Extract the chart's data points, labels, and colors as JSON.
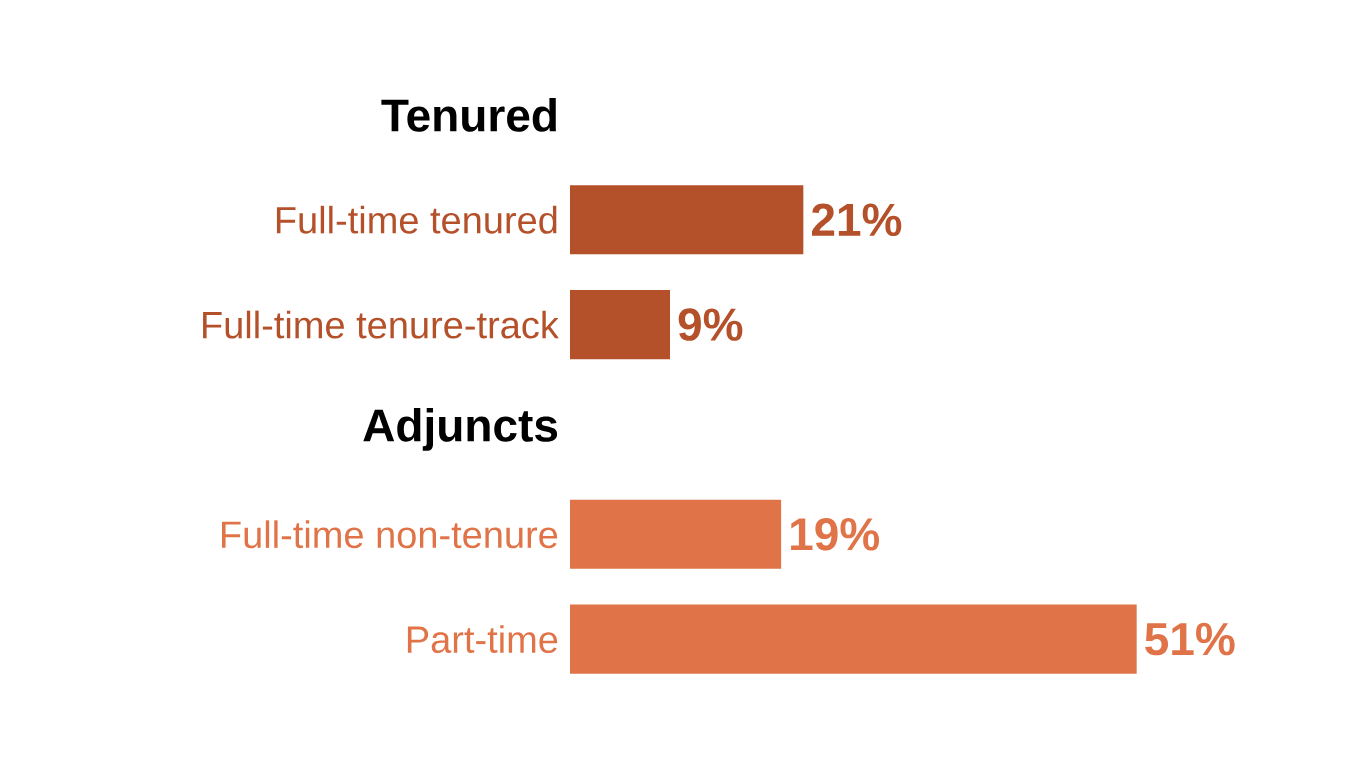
{
  "chart_data": {
    "type": "bar",
    "orientation": "horizontal",
    "categories": [
      "Full-time tenured",
      "Full-time tenure-track",
      "Full-time non-tenure",
      "Part-time"
    ],
    "values": [
      21,
      9,
      19,
      51
    ],
    "colors": [
      "#b5512a",
      "#b5512a",
      "#e07448",
      "#e07448"
    ],
    "value_labels": [
      "21%",
      "9%",
      "19%",
      "51%"
    ],
    "annotations": [
      "Tenured",
      "Adjuncts"
    ]
  }
}
